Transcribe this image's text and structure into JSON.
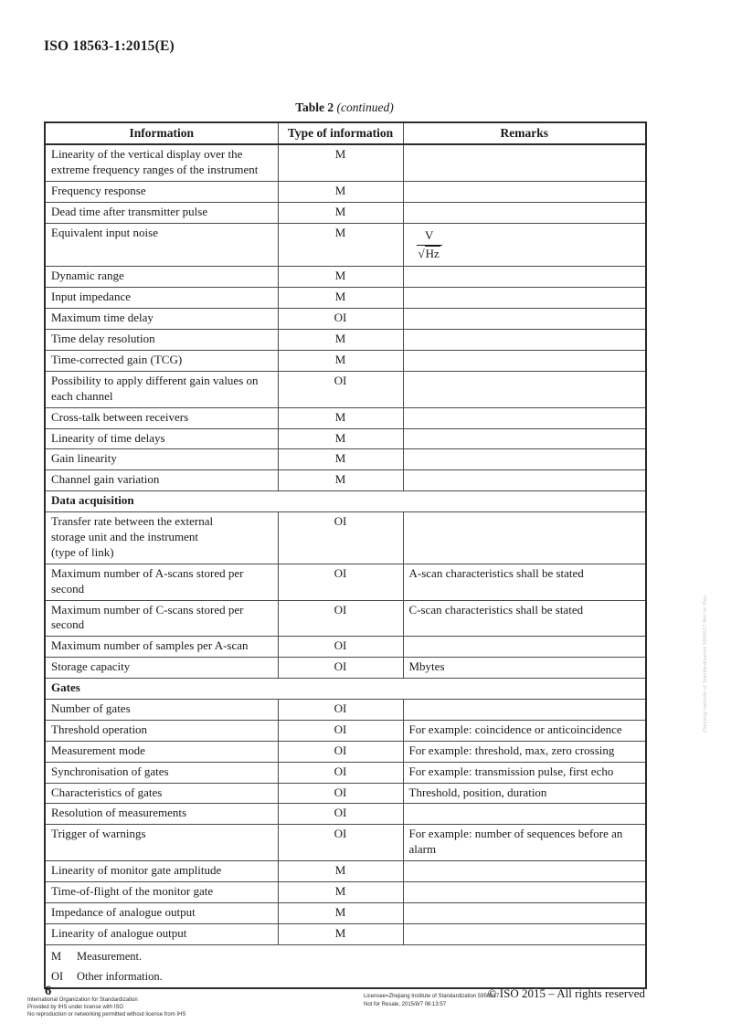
{
  "page": {
    "header": "ISO 18563-1:2015(E)",
    "table_title": {
      "label": "Table 2",
      "suffix": "(continued)"
    },
    "footer": {
      "page_number": "6",
      "left_lines": [
        "International Organization for Standardization",
        "Provided by IHS under license with ISO",
        "No reproduction or networking permitted without license from IHS"
      ],
      "license_lines": [
        "Licensee=Zhejiang Institute of Standardization 5956617",
        "Not for Resale, 2015/8/7 06:13:57"
      ],
      "copyright": "© ISO 2015 – All rights reserved"
    },
    "watermark_vertical": "Zhejiang Institute of Standardization 5956617 Not for Resale"
  },
  "table": {
    "columns": [
      "Information",
      "Type of information",
      "Remarks"
    ],
    "rows": [
      {
        "info": "Linearity of the vertical display over the extreme frequency ranges of the instrument",
        "type": "M",
        "remarks": ""
      },
      {
        "info": "Frequency response",
        "type": "M",
        "remarks": ""
      },
      {
        "info": "Dead time after transmitter pulse",
        "type": "M",
        "remarks": ""
      },
      {
        "info": "Equivalent input noise",
        "type": "M",
        "remarks": "",
        "formula": {
          "numerator": "V",
          "radical_sign": "√",
          "radicand": "Hz"
        }
      },
      {
        "info": "Dynamic range",
        "type": "M",
        "remarks": ""
      },
      {
        "info": "Input impedance",
        "type": "M",
        "remarks": ""
      },
      {
        "info": "Maximum time delay",
        "type": "OI",
        "remarks": ""
      },
      {
        "info": "Time delay resolution",
        "type": "M",
        "remarks": ""
      },
      {
        "info": "Time-corrected gain (TCG)",
        "type": "M",
        "remarks": ""
      },
      {
        "info": "Possibility to apply different gain values on each channel",
        "type": "OI",
        "remarks": ""
      },
      {
        "info": "Cross-talk between receivers",
        "type": "M",
        "remarks": ""
      },
      {
        "info": "Linearity of time delays",
        "type": "M",
        "remarks": ""
      },
      {
        "info": "Gain linearity",
        "type": "M",
        "remarks": ""
      },
      {
        "info": "Channel gain variation",
        "type": "M",
        "remarks": ""
      },
      {
        "section": "Data acquisition"
      },
      {
        "info": "Transfer rate between the external storage unit and the instrument (type of link)",
        "type": "OI",
        "remarks": "",
        "info_lines": [
          "Transfer rate between the external",
          "storage unit and the instrument",
          "(type of link)"
        ]
      },
      {
        "info": "Maximum number of A-scans stored per second",
        "type": "OI",
        "remarks": "A-scan characteristics shall be stated"
      },
      {
        "info": "Maximum number of C-scans stored per second",
        "type": "OI",
        "remarks": "C-scan characteristics shall be stated"
      },
      {
        "info": "Maximum number of samples per A-scan",
        "type": "OI",
        "remarks": ""
      },
      {
        "info": "Storage capacity",
        "type": "OI",
        "remarks": "Mbytes"
      },
      {
        "section": "Gates"
      },
      {
        "info": "Number of gates",
        "type": "OI",
        "remarks": ""
      },
      {
        "info": "Threshold operation",
        "type": "OI",
        "remarks": "For example: coincidence or anticoincidence"
      },
      {
        "info": "Measurement mode",
        "type": "OI",
        "remarks": "For example: threshold, max, zero crossing"
      },
      {
        "info": "Synchronisation of gates",
        "type": "OI",
        "remarks": "For example: transmission pulse, first echo"
      },
      {
        "info": "Characteristics of gates",
        "type": "OI",
        "remarks": "Threshold, position, duration"
      },
      {
        "info": "Resolution of measurements",
        "type": "OI",
        "remarks": ""
      },
      {
        "info": "Trigger of warnings",
        "type": "OI",
        "remarks": "For example: number of sequences before an alarm"
      },
      {
        "info": "Linearity of monitor gate amplitude",
        "type": "M",
        "remarks": ""
      },
      {
        "info": "Time-of-flight of the monitor gate",
        "type": "M",
        "remarks": ""
      },
      {
        "info": "Impedance of analogue output",
        "type": "M",
        "remarks": ""
      },
      {
        "info": "Linearity of analogue output",
        "type": "M",
        "remarks": ""
      }
    ],
    "footnotes": [
      {
        "key": "M",
        "text": "Measurement."
      },
      {
        "key": "OI",
        "text": "Other information."
      }
    ]
  }
}
